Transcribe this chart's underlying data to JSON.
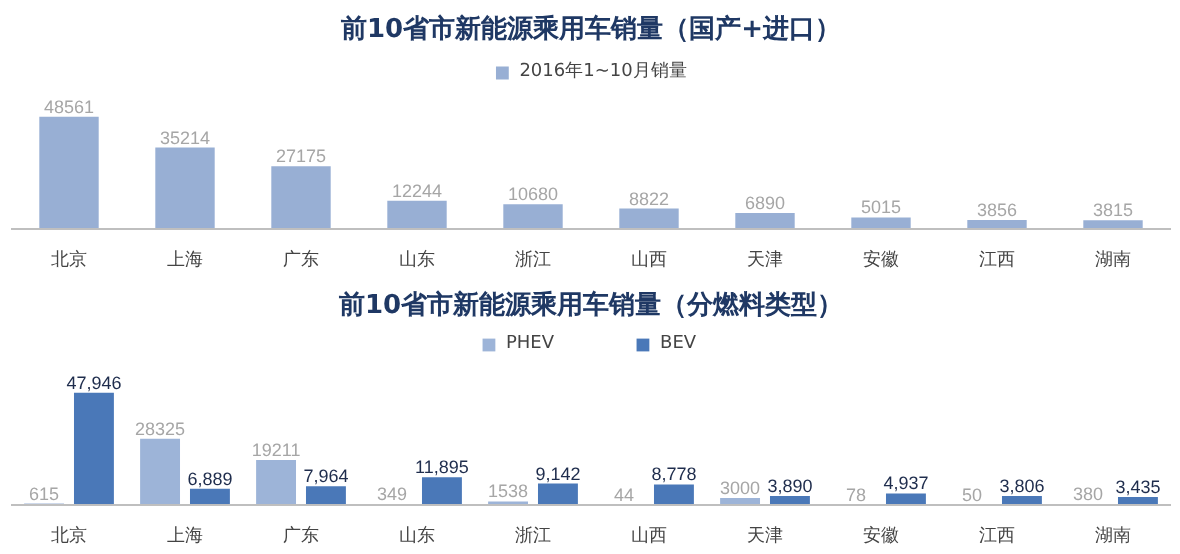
{
  "chart_data": [
    {
      "type": "bar",
      "title": "前10省市新能源乘用车销量（国产+进口）",
      "categories": [
        "北京",
        "上海",
        "广东",
        "山东",
        "浙江",
        "山西",
        "天津",
        "安徽",
        "江西",
        "湖南"
      ],
      "series": [
        {
          "name": "2016年1~10月销量",
          "color": "#98afd4",
          "values": [
            48561,
            35214,
            27175,
            12244,
            10680,
            8822,
            6890,
            5015,
            3856,
            3815
          ]
        }
      ],
      "data_labels": true,
      "legend": "top",
      "grid": false
    },
    {
      "type": "bar",
      "title": "前10省市新能源乘用车销量（分燃料类型）",
      "categories": [
        "北京",
        "上海",
        "广东",
        "山东",
        "浙江",
        "山西",
        "天津",
        "安徽",
        "江西",
        "湖南"
      ],
      "series": [
        {
          "name": "PHEV",
          "color": "#9db4d8",
          "values": [
            615,
            28325,
            19211,
            349,
            1538,
            44,
            3000,
            78,
            50,
            380
          ],
          "value_labels": [
            "615",
            "28325",
            "19211",
            "349",
            "1538",
            "44",
            "3000",
            "78",
            "50",
            "380"
          ]
        },
        {
          "name": "BEV",
          "color": "#4a78b8",
          "values": [
            47946,
            6889,
            7964,
            11895,
            9142,
            8778,
            3890,
            4937,
            3806,
            3435
          ],
          "value_labels": [
            "47,946",
            "6,889",
            "7,964",
            "11,895",
            "9,142",
            "8,778",
            "3,890",
            "4,937",
            "3,806",
            "3,435"
          ]
        }
      ],
      "legend": "top",
      "grid": false
    }
  ]
}
